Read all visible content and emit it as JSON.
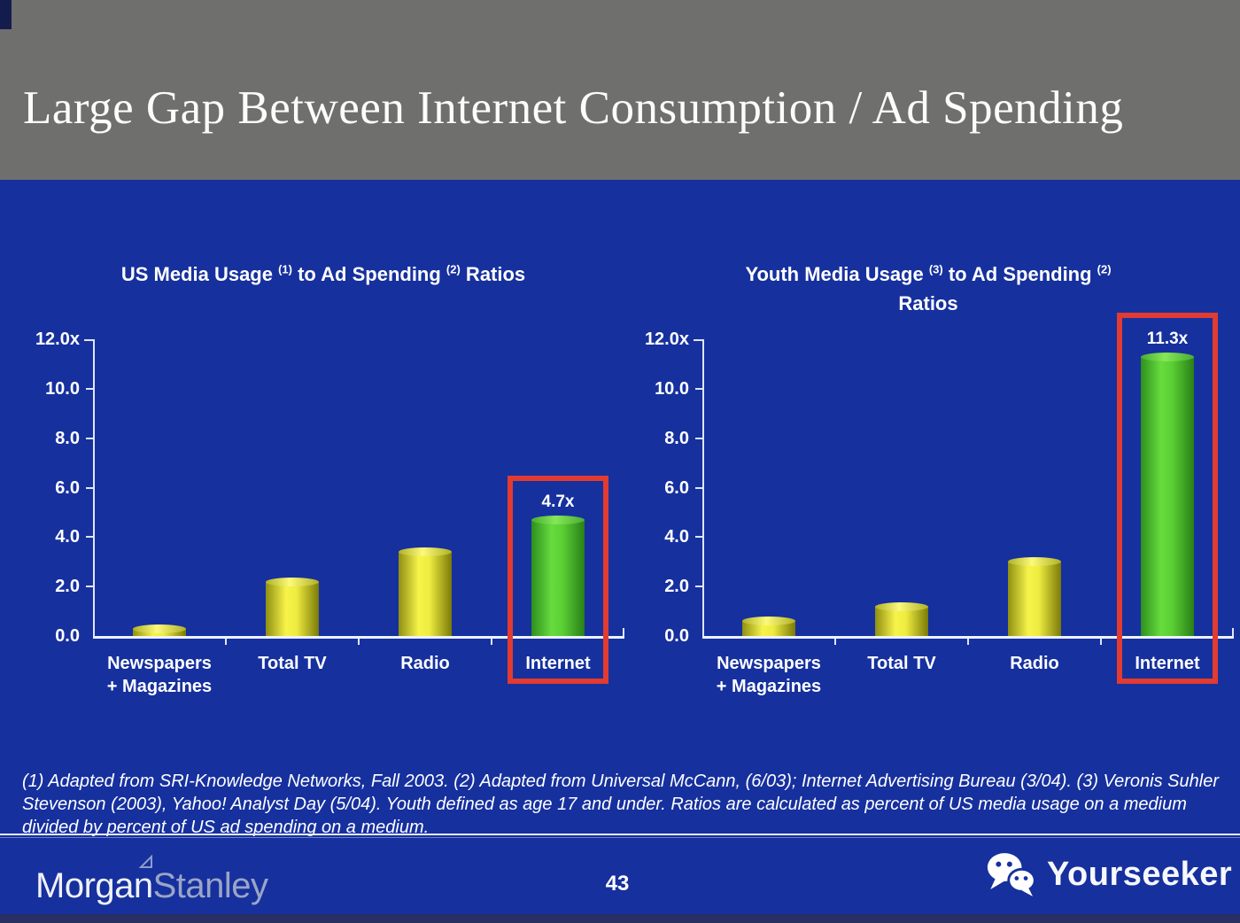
{
  "slide": {
    "title": "Large Gap Between Internet Consumption / Ad Spending"
  },
  "colors": {
    "background_blue": "#16309e",
    "header_gray": "#6f6f6d",
    "bar_yellow": "#f2ee3e",
    "bar_green": "#58cf35",
    "highlight_red": "#e23b31",
    "axis_line": "#dfe5f6"
  },
  "chart_data": [
    {
      "type": "bar",
      "title_lines": [
        [
          "US Media Usage ",
          "(1)",
          " to Ad Spending ",
          "(2)",
          " Ratios"
        ]
      ],
      "categories": [
        [
          "Newspapers",
          "+ Magazines"
        ],
        [
          "Total TV"
        ],
        [
          "Radio"
        ],
        [
          "Internet"
        ]
      ],
      "values": [
        0.3,
        2.2,
        3.4,
        4.7
      ],
      "bar_colors": [
        "yellow",
        "yellow",
        "yellow",
        "green"
      ],
      "value_labels": [
        "",
        "",
        "",
        "4.7x"
      ],
      "highlight_index": 3,
      "y_ticks": [
        "12.0x",
        "10.0",
        "8.0",
        "6.0",
        "4.0",
        "2.0",
        "0.0"
      ],
      "ylim": [
        0,
        12
      ],
      "grid": false,
      "legend": false
    },
    {
      "type": "bar",
      "title_lines": [
        [
          "Youth Media Usage ",
          "(3)",
          " to Ad Spending ",
          "(2)"
        ],
        [
          "Ratios"
        ]
      ],
      "categories": [
        [
          "Newspapers",
          "+ Magazines"
        ],
        [
          "Total TV"
        ],
        [
          "Radio"
        ],
        [
          "Internet"
        ]
      ],
      "values": [
        0.6,
        1.2,
        3.0,
        11.3
      ],
      "bar_colors": [
        "yellow",
        "yellow",
        "yellow",
        "green"
      ],
      "value_labels": [
        "",
        "",
        "",
        "11.3x"
      ],
      "highlight_index": 3,
      "y_ticks": [
        "12.0x",
        "10.0",
        "8.0",
        "6.0",
        "4.0",
        "2.0",
        "0.0"
      ],
      "ylim": [
        0,
        12
      ],
      "grid": false,
      "legend": false
    }
  ],
  "footnote": {
    "text": "(1) Adapted from SRI-Knowledge Networks, Fall 2003.  (2) Adapted from Universal McCann, (6/03); Internet Advertising Bureau (3/04). (3) Veronis Suhler Stevenson (2003), Yahoo! Analyst Day (5/04).  Youth defined as age 17 and under.  Ratios are calculated as percent of US media usage on a medium divided by percent of US ad spending on a medium."
  },
  "footer": {
    "brand_part1": "Morgan",
    "brand_part2": "Stanley",
    "page_number": "43",
    "watermark": "Yourseeker"
  }
}
